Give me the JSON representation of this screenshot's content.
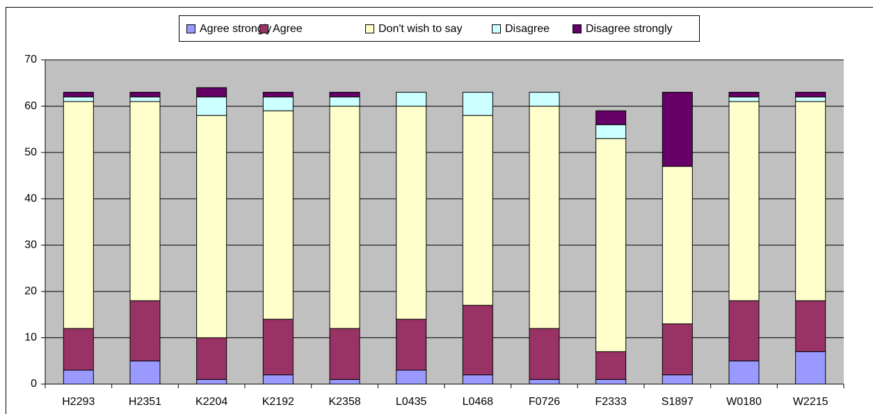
{
  "chart_data": {
    "type": "stacked_bar",
    "categories": [
      "H2293",
      "H2351",
      "K2204",
      "K2192",
      "K2358",
      "L0435",
      "L0468",
      "F0726",
      "F2333",
      "S1897",
      "W0180",
      "W2215"
    ],
    "series": [
      {
        "name": "Agree strongly",
        "color": "#9999ff",
        "values": [
          3,
          5,
          1,
          2,
          1,
          3,
          2,
          1,
          1,
          2,
          5,
          7
        ]
      },
      {
        "name": "Agree",
        "color": "#993366",
        "values": [
          9,
          13,
          9,
          12,
          11,
          11,
          15,
          11,
          6,
          11,
          13,
          11
        ]
      },
      {
        "name": "Don't wish to say",
        "color": "#ffffcc",
        "values": [
          49,
          43,
          48,
          45,
          48,
          46,
          41,
          48,
          46,
          34,
          43,
          43
        ]
      },
      {
        "name": "Disagree",
        "color": "#ccffff",
        "values": [
          1,
          1,
          4,
          3,
          2,
          3,
          5,
          3,
          3,
          0,
          1,
          1
        ]
      },
      {
        "name": "Disagree strongly",
        "color": "#660066",
        "values": [
          1,
          1,
          2,
          1,
          1,
          0,
          0,
          0,
          3,
          16,
          1,
          1
        ]
      }
    ],
    "ylim": [
      0,
      70
    ],
    "yticks": [
      0,
      10,
      20,
      30,
      40,
      50,
      60,
      70
    ],
    "grid": true,
    "legend": "top"
  }
}
